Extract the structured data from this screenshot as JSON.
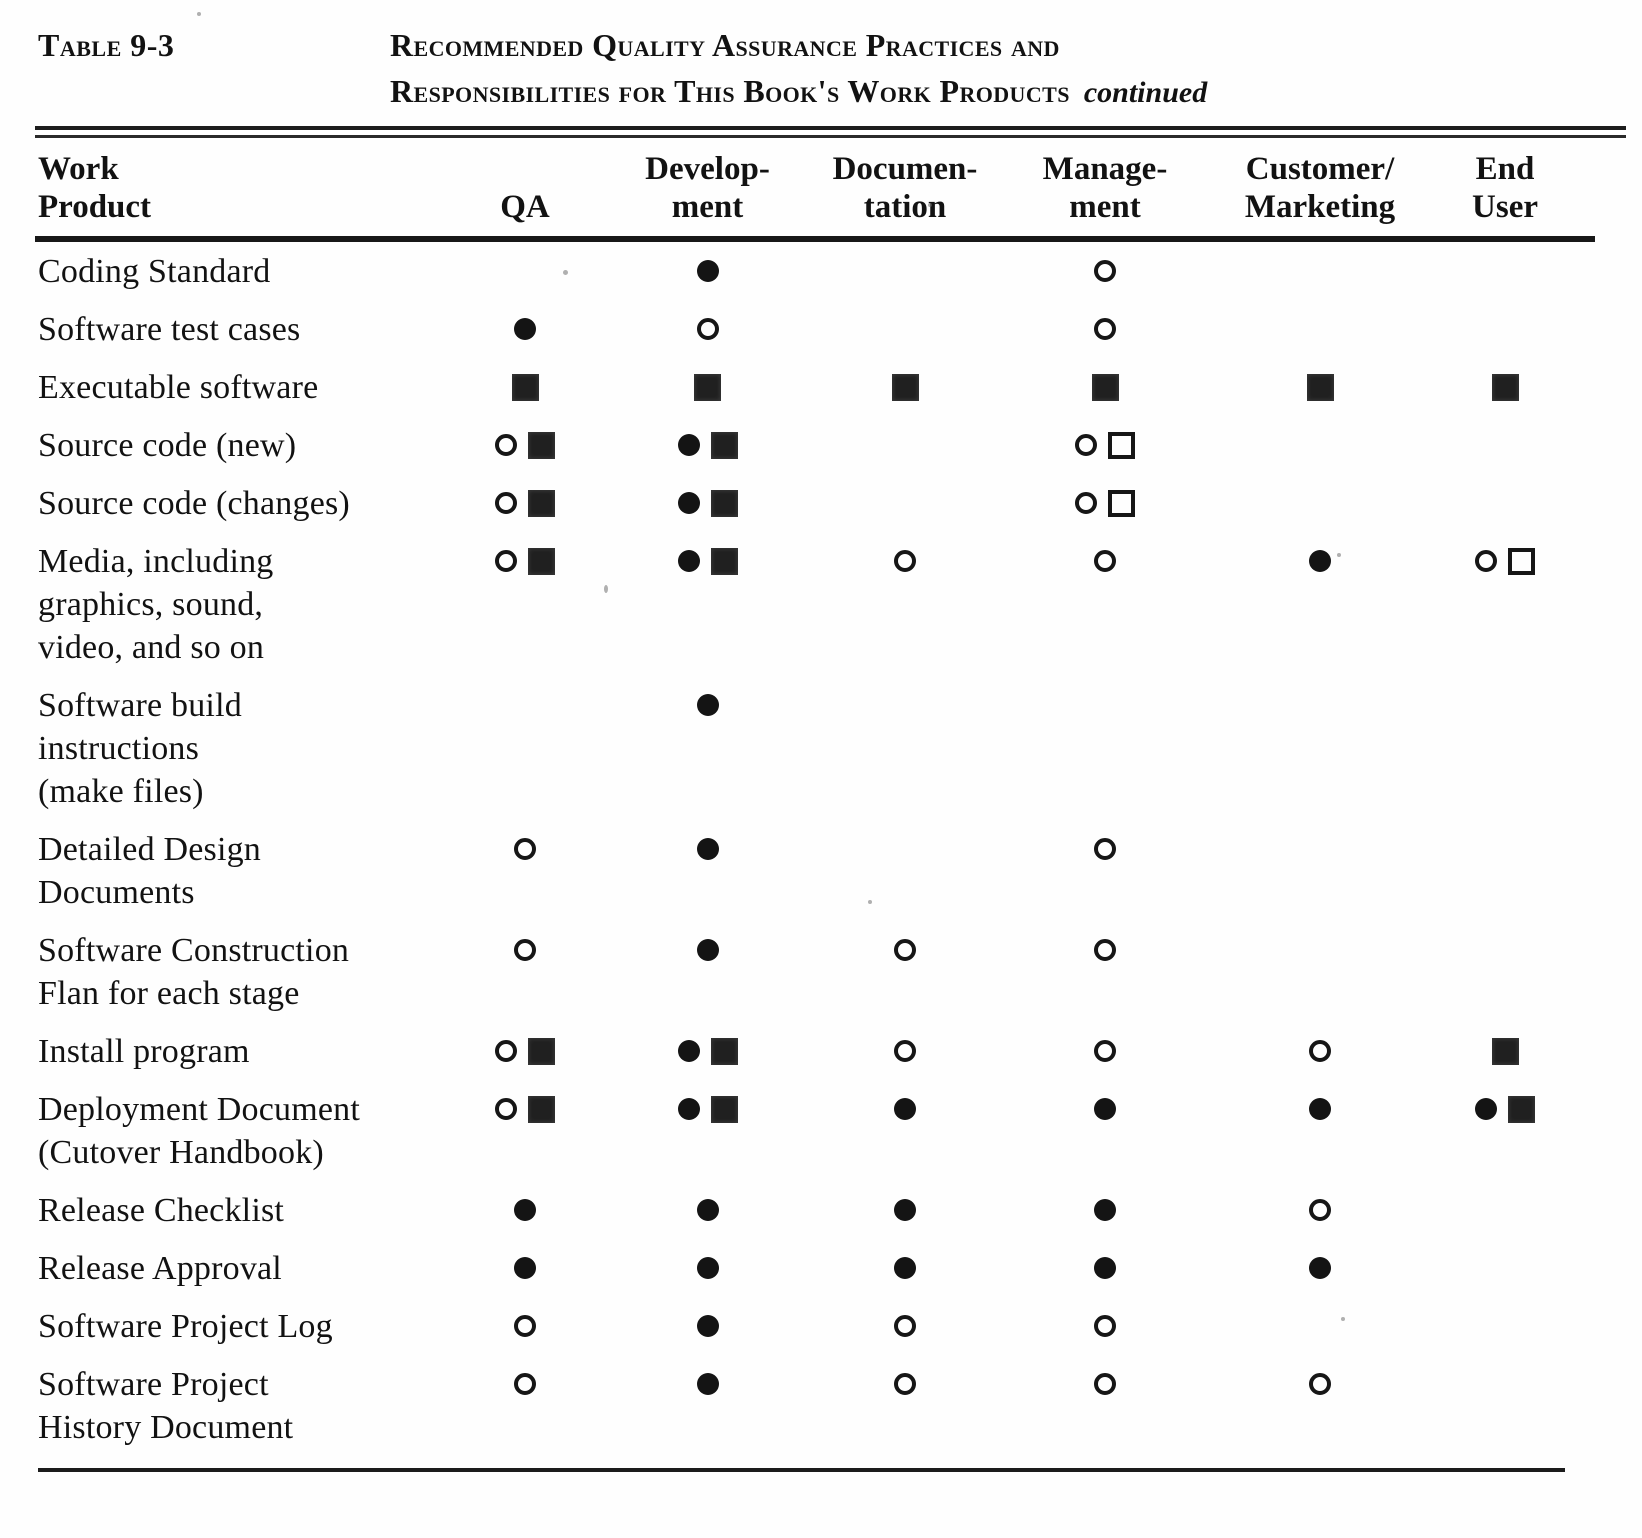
{
  "caption": {
    "label": "Table 9-3",
    "title_line1": "Recommended Quality Assurance Practices and",
    "title_line2": "Responsibilities for This Book's Work Products",
    "continued_note": "continued"
  },
  "columns": [
    {
      "id": "work_product",
      "line1": "Work",
      "line2": "Product"
    },
    {
      "id": "qa",
      "line1": "",
      "line2": "QA"
    },
    {
      "id": "development",
      "line1": "Develop-",
      "line2": "ment"
    },
    {
      "id": "documentation",
      "line1": "Documen-",
      "line2": "tation"
    },
    {
      "id": "management",
      "line1": "Manage-",
      "line2": "ment"
    },
    {
      "id": "customer_marketing",
      "line1": "Customer/",
      "line2": "Marketing"
    },
    {
      "id": "end_user",
      "line1": "End",
      "line2": "User"
    }
  ],
  "symbol_types": [
    "filled-circle",
    "open-circle",
    "filled-square",
    "open-square"
  ],
  "colors": {
    "ink": "#121212",
    "paper": "#fefefe"
  },
  "rows": [
    {
      "product_lines": [
        "Coding Standard"
      ],
      "cells": [
        [],
        [
          "filled-circle"
        ],
        [],
        [
          "open-circle"
        ],
        [],
        []
      ]
    },
    {
      "product_lines": [
        "Software test cases"
      ],
      "cells": [
        [
          "filled-circle"
        ],
        [
          "open-circle"
        ],
        [],
        [
          "open-circle"
        ],
        [],
        []
      ]
    },
    {
      "product_lines": [
        "Executable software"
      ],
      "cells": [
        [
          "filled-square"
        ],
        [
          "filled-square"
        ],
        [
          "filled-square"
        ],
        [
          "filled-square"
        ],
        [
          "filled-square"
        ],
        [
          "filled-square"
        ]
      ]
    },
    {
      "product_lines": [
        "Source code (new)"
      ],
      "cells": [
        [
          "open-circle",
          "filled-square"
        ],
        [
          "filled-circle",
          "filled-square"
        ],
        [],
        [
          "open-circle",
          "open-square"
        ],
        [],
        []
      ]
    },
    {
      "product_lines": [
        "Source code (changes)"
      ],
      "cells": [
        [
          "open-circle",
          "filled-square"
        ],
        [
          "filled-circle",
          "filled-square"
        ],
        [],
        [
          "open-circle",
          "open-square"
        ],
        [],
        []
      ]
    },
    {
      "product_lines": [
        "Media, including",
        "graphics, sound,",
        "video, and so on"
      ],
      "cells": [
        [
          "open-circle",
          "filled-square"
        ],
        [
          "filled-circle",
          "filled-square"
        ],
        [
          "open-circle"
        ],
        [
          "open-circle"
        ],
        [
          "filled-circle"
        ],
        [
          "open-circle",
          "open-square"
        ]
      ]
    },
    {
      "product_lines": [
        "Software build",
        "instructions",
        "(make files)"
      ],
      "cells": [
        [],
        [
          "filled-circle"
        ],
        [],
        [],
        [],
        []
      ]
    },
    {
      "product_lines": [
        "Detailed Design",
        "Documents"
      ],
      "cells": [
        [
          "open-circle"
        ],
        [
          "filled-circle"
        ],
        [],
        [
          "open-circle"
        ],
        [],
        []
      ]
    },
    {
      "product_lines": [
        "Software Construction",
        "Flan for each stage"
      ],
      "cells": [
        [
          "open-circle"
        ],
        [
          "filled-circle"
        ],
        [
          "open-circle"
        ],
        [
          "open-circle"
        ],
        [],
        []
      ]
    },
    {
      "product_lines": [
        "Install program"
      ],
      "cells": [
        [
          "open-circle",
          "filled-square"
        ],
        [
          "filled-circle",
          "filled-square"
        ],
        [
          "open-circle"
        ],
        [
          "open-circle"
        ],
        [
          "open-circle"
        ],
        [
          "filled-square"
        ]
      ]
    },
    {
      "product_lines": [
        "Deployment Document",
        "(Cutover Handbook)"
      ],
      "cells": [
        [
          "open-circle",
          "filled-square"
        ],
        [
          "filled-circle",
          "filled-square"
        ],
        [
          "filled-circle"
        ],
        [
          "filled-circle"
        ],
        [
          "filled-circle"
        ],
        [
          "filled-circle",
          "filled-square"
        ]
      ]
    },
    {
      "product_lines": [
        "Release Checklist"
      ],
      "cells": [
        [
          "filled-circle"
        ],
        [
          "filled-circle"
        ],
        [
          "filled-circle"
        ],
        [
          "filled-circle"
        ],
        [
          "open-circle"
        ],
        []
      ]
    },
    {
      "product_lines": [
        "Release Approval"
      ],
      "cells": [
        [
          "filled-circle"
        ],
        [
          "filled-circle"
        ],
        [
          "filled-circle"
        ],
        [
          "filled-circle"
        ],
        [
          "filled-circle"
        ],
        []
      ]
    },
    {
      "product_lines": [
        "Software Project Log"
      ],
      "cells": [
        [
          "open-circle"
        ],
        [
          "filled-circle"
        ],
        [
          "open-circle"
        ],
        [
          "open-circle"
        ],
        [],
        []
      ]
    },
    {
      "product_lines": [
        "Software Project",
        "History Document"
      ],
      "cells": [
        [
          "open-circle"
        ],
        [
          "filled-circle"
        ],
        [
          "open-circle"
        ],
        [
          "open-circle"
        ],
        [
          "open-circle"
        ],
        []
      ]
    }
  ]
}
